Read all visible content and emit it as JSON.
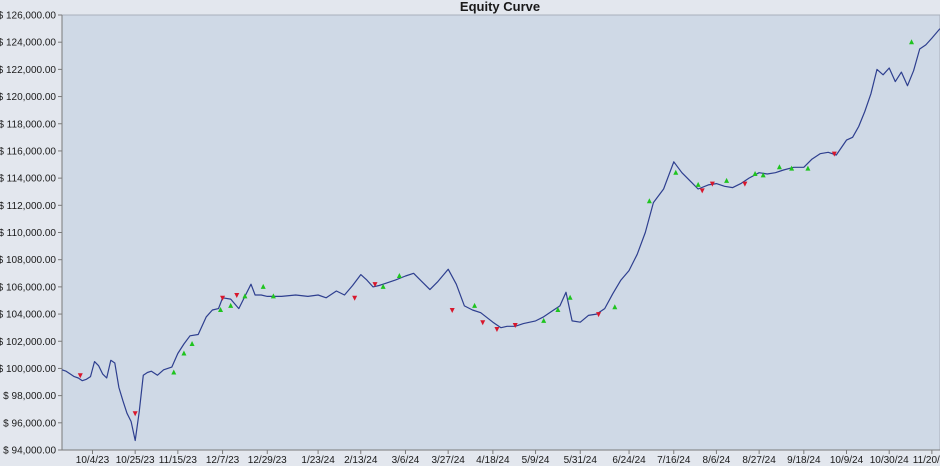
{
  "chart_data": {
    "type": "line",
    "title": "Equity Curve",
    "xlabel": "",
    "ylabel": "",
    "ylim": [
      94000,
      126000
    ],
    "yticks": [
      94000,
      96000,
      98000,
      100000,
      102000,
      104000,
      106000,
      108000,
      110000,
      112000,
      114000,
      116000,
      118000,
      120000,
      122000,
      124000,
      126000
    ],
    "ytick_labels": [
      "$ 94,000.00",
      "$ 96,000.00",
      "$ 98,000.00",
      "$ 100,000.00",
      "$ 102,000.00",
      "$ 104,000.00",
      "$ 106,000.00",
      "$ 108,000.00",
      "$ 110,000.00",
      "$ 112,000.00",
      "$ 114,000.00",
      "$ 116,000.00",
      "$ 118,000.00",
      "$ 120,000.00",
      "$ 122,000.00",
      "$ 124,000.00",
      "$ 126,000.00"
    ],
    "xlim": [
      "2023-09-19",
      "2024-11-24"
    ],
    "xticks": [
      "2023-10-04",
      "2023-10-25",
      "2023-11-15",
      "2023-12-07",
      "2023-12-29",
      "2024-01-23",
      "2024-02-13",
      "2024-03-06",
      "2024-03-27",
      "2024-04-18",
      "2024-05-09",
      "2024-05-31",
      "2024-06-24",
      "2024-07-16",
      "2024-08-06",
      "2024-08-27",
      "2024-09-18",
      "2024-10-09",
      "2024-10-30",
      "2024-11-20"
    ],
    "xtick_labels": [
      "10/4/23",
      "10/25/23",
      "11/15/23",
      "12/7/23",
      "12/29/23",
      "1/23/24",
      "2/13/24",
      "3/6/24",
      "3/27/24",
      "4/18/24",
      "5/9/24",
      "5/31/24",
      "6/24/24",
      "7/16/24",
      "8/6/24",
      "8/27/24",
      "9/18/24",
      "10/9/24",
      "10/30/24",
      "11/20/24"
    ],
    "grid": false,
    "legend": "none",
    "colors": {
      "background": "#cfd9e6",
      "line": "#2e3f8f",
      "buy_marker": "#1fc41f",
      "sell_marker": "#d8172c",
      "axis": "#7a7a7a",
      "frame": "#a8b0bc"
    },
    "series": [
      {
        "x": [
          "2023-09-19",
          "2023-09-21",
          "2023-09-23",
          "2023-09-25",
          "2023-09-27",
          "2023-09-29",
          "2023-10-01",
          "2023-10-03",
          "2023-10-05",
          "2023-10-07",
          "2023-10-09",
          "2023-10-11",
          "2023-10-13",
          "2023-10-15",
          "2023-10-17",
          "2023-10-19",
          "2023-10-21",
          "2023-10-23",
          "2023-10-25",
          "2023-10-27",
          "2023-10-29",
          "2023-10-31",
          "2023-11-02",
          "2023-11-05",
          "2023-11-08",
          "2023-11-12",
          "2023-11-15",
          "2023-11-18",
          "2023-11-21",
          "2023-11-25",
          "2023-11-29",
          "2023-12-02",
          "2023-12-05",
          "2023-12-07",
          "2023-12-11",
          "2023-12-15",
          "2023-12-18",
          "2023-12-21",
          "2023-12-23",
          "2023-12-26",
          "2023-12-29",
          "2024-01-05",
          "2024-01-12",
          "2024-01-18",
          "2024-01-23",
          "2024-01-27",
          "2024-02-01",
          "2024-02-05",
          "2024-02-09",
          "2024-02-13",
          "2024-02-16",
          "2024-02-19",
          "2024-02-22",
          "2024-02-26",
          "2024-03-01",
          "2024-03-06",
          "2024-03-10",
          "2024-03-14",
          "2024-03-18",
          "2024-03-22",
          "2024-03-27",
          "2024-03-31",
          "2024-04-04",
          "2024-04-08",
          "2024-04-12",
          "2024-04-18",
          "2024-04-22",
          "2024-04-25",
          "2024-04-29",
          "2024-05-03",
          "2024-05-09",
          "2024-05-13",
          "2024-05-17",
          "2024-05-21",
          "2024-05-24",
          "2024-05-27",
          "2024-05-31",
          "2024-06-04",
          "2024-06-08",
          "2024-06-12",
          "2024-06-16",
          "2024-06-20",
          "2024-06-24",
          "2024-06-28",
          "2024-07-02",
          "2024-07-06",
          "2024-07-11",
          "2024-07-16",
          "2024-07-20",
          "2024-07-24",
          "2024-07-28",
          "2024-08-02",
          "2024-08-06",
          "2024-08-10",
          "2024-08-14",
          "2024-08-18",
          "2024-08-22",
          "2024-08-27",
          "2024-08-31",
          "2024-09-04",
          "2024-09-08",
          "2024-09-13",
          "2024-09-18",
          "2024-09-22",
          "2024-09-26",
          "2024-09-30",
          "2024-10-04",
          "2024-10-09",
          "2024-10-12",
          "2024-10-15",
          "2024-10-18",
          "2024-10-21",
          "2024-10-24",
          "2024-10-27",
          "2024-10-30",
          "2024-11-02",
          "2024-11-05",
          "2024-11-08",
          "2024-11-11",
          "2024-11-14",
          "2024-11-17",
          "2024-11-20",
          "2024-11-24"
        ],
        "values": [
          99900,
          99800,
          99600,
          99400,
          99300,
          99100,
          99200,
          99400,
          100500,
          100200,
          99600,
          99300,
          100600,
          100400,
          98600,
          97600,
          96700,
          96100,
          94700,
          96800,
          99500,
          99700,
          99800,
          99500,
          99900,
          100100,
          101100,
          101800,
          102400,
          102500,
          103800,
          104300,
          104400,
          105200,
          105100,
          104400,
          105300,
          106200,
          105400,
          105400,
          105300,
          105300,
          105400,
          105300,
          105400,
          105200,
          105700,
          105400,
          106100,
          106900,
          106500,
          106000,
          106100,
          106300,
          106500,
          106800,
          107000,
          106400,
          105800,
          106400,
          107300,
          106200,
          104600,
          104300,
          104100,
          103400,
          103000,
          103100,
          103100,
          103300,
          103500,
          103800,
          104200,
          104600,
          105600,
          103500,
          103400,
          103900,
          104000,
          104400,
          105500,
          106500,
          107200,
          108400,
          110000,
          112200,
          113200,
          115200,
          114400,
          113800,
          113200,
          113500,
          113600,
          113400,
          113300,
          113600,
          114000,
          114400,
          114300,
          114400,
          114600,
          114800,
          114800,
          115400,
          115800,
          115900,
          115700,
          116800,
          117000,
          117800,
          118900,
          120200,
          122000,
          121600,
          122100,
          121100,
          121800,
          120800,
          121900,
          123500,
          123800,
          124300,
          125000
        ]
      }
    ],
    "trade_markers": [
      {
        "x": "2023-09-28",
        "y": 99500,
        "type": "sell"
      },
      {
        "x": "2023-10-25",
        "y": 96700,
        "type": "sell"
      },
      {
        "x": "2023-11-13",
        "y": 99700,
        "type": "buy"
      },
      {
        "x": "2023-11-18",
        "y": 101100,
        "type": "buy"
      },
      {
        "x": "2023-11-22",
        "y": 101800,
        "type": "buy"
      },
      {
        "x": "2023-12-06",
        "y": 104300,
        "type": "buy"
      },
      {
        "x": "2023-12-07",
        "y": 105200,
        "type": "sell"
      },
      {
        "x": "2023-12-11",
        "y": 104600,
        "type": "buy"
      },
      {
        "x": "2023-12-14",
        "y": 105400,
        "type": "sell"
      },
      {
        "x": "2023-12-18",
        "y": 105300,
        "type": "buy"
      },
      {
        "x": "2023-12-27",
        "y": 106000,
        "type": "buy"
      },
      {
        "x": "2024-01-01",
        "y": 105300,
        "type": "buy"
      },
      {
        "x": "2024-02-10",
        "y": 105200,
        "type": "sell"
      },
      {
        "x": "2024-02-20",
        "y": 106200,
        "type": "sell"
      },
      {
        "x": "2024-02-24",
        "y": 106000,
        "type": "buy"
      },
      {
        "x": "2024-03-03",
        "y": 106800,
        "type": "buy"
      },
      {
        "x": "2024-03-29",
        "y": 104300,
        "type": "sell"
      },
      {
        "x": "2024-04-09",
        "y": 104600,
        "type": "buy"
      },
      {
        "x": "2024-04-13",
        "y": 103400,
        "type": "sell"
      },
      {
        "x": "2024-04-20",
        "y": 102900,
        "type": "sell"
      },
      {
        "x": "2024-04-29",
        "y": 103200,
        "type": "sell"
      },
      {
        "x": "2024-05-13",
        "y": 103500,
        "type": "buy"
      },
      {
        "x": "2024-05-20",
        "y": 104300,
        "type": "buy"
      },
      {
        "x": "2024-05-26",
        "y": 105200,
        "type": "buy"
      },
      {
        "x": "2024-06-09",
        "y": 104000,
        "type": "sell"
      },
      {
        "x": "2024-06-17",
        "y": 104500,
        "type": "buy"
      },
      {
        "x": "2024-07-04",
        "y": 112300,
        "type": "buy"
      },
      {
        "x": "2024-07-17",
        "y": 114400,
        "type": "buy"
      },
      {
        "x": "2024-07-28",
        "y": 113500,
        "type": "buy"
      },
      {
        "x": "2024-07-30",
        "y": 113100,
        "type": "sell"
      },
      {
        "x": "2024-08-04",
        "y": 113600,
        "type": "sell"
      },
      {
        "x": "2024-08-11",
        "y": 113800,
        "type": "buy"
      },
      {
        "x": "2024-08-20",
        "y": 113600,
        "type": "sell"
      },
      {
        "x": "2024-08-25",
        "y": 114300,
        "type": "buy"
      },
      {
        "x": "2024-08-29",
        "y": 114200,
        "type": "buy"
      },
      {
        "x": "2024-09-06",
        "y": 114800,
        "type": "buy"
      },
      {
        "x": "2024-09-12",
        "y": 114700,
        "type": "buy"
      },
      {
        "x": "2024-09-20",
        "y": 114700,
        "type": "buy"
      },
      {
        "x": "2024-10-03",
        "y": 115800,
        "type": "sell"
      },
      {
        "x": "2024-11-10",
        "y": 124000,
        "type": "buy"
      }
    ]
  }
}
